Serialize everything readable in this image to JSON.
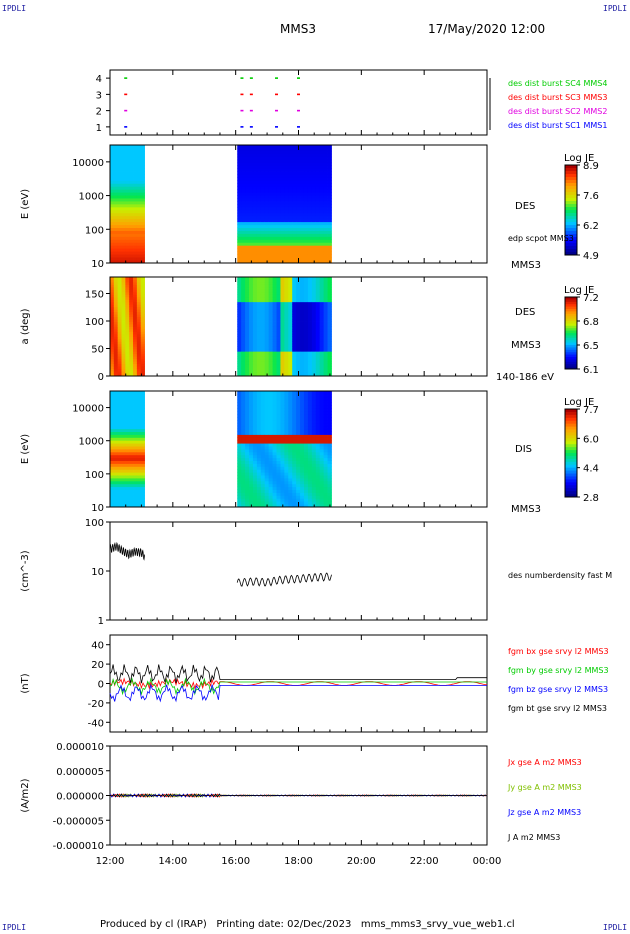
{
  "header": {
    "corner_label": "IPDLI",
    "spacecraft": "MMS3",
    "datetime": "17/May/2020 12:00"
  },
  "footer": {
    "produced_by": "Produced by cl (IRAP)",
    "printing_date": "Printing date: 02/Dec/2023",
    "filename": "mms_mms3_srvy_vue_web1.cl"
  },
  "colors": {
    "c1": "#0000ff",
    "c2": "#e000e0",
    "c3": "#ff0000",
    "c4": "#00cc00",
    "bx": "#ff0000",
    "by": "#00cc00",
    "bz": "#0000ff",
    "bt": "#000000"
  },
  "chart_data": [
    {
      "id": "burst",
      "type": "scatter",
      "ylim": [
        0.5,
        4.5
      ],
      "yticks": [
        "1",
        "2",
        "3",
        "4"
      ],
      "series": [
        {
          "name": "des dist burst SC1 MMS1",
          "level": 1,
          "color": "#0000ff",
          "x_hours": [
            0.5,
            4.2,
            4.5,
            5.3,
            6.0
          ]
        },
        {
          "name": "des dist burst SC2 MMS2",
          "level": 2,
          "color": "#e000e0",
          "x_hours": [
            0.5,
            4.2,
            4.5,
            5.3,
            6.0
          ]
        },
        {
          "name": "des dist burst SC3 MMS3",
          "level": 3,
          "color": "#ff0000",
          "x_hours": [
            0.5,
            4.2,
            4.5,
            5.3,
            6.0
          ]
        },
        {
          "name": "des dist burst SC4 MMS4",
          "level": 4,
          "color": "#00cc00",
          "x_hours": [
            0.5,
            4.2,
            4.5,
            5.3,
            6.0
          ]
        }
      ]
    },
    {
      "id": "des_energy",
      "type": "heatmap",
      "ylabel": "E (eV)",
      "yticks": [
        "10",
        "100",
        "1000",
        "10000"
      ],
      "ylim_log": [
        1,
        4.5
      ],
      "right_label": "DES",
      "right_sub": "MMS3",
      "overlay_label": "edp scpot MMS3",
      "colorbar": {
        "title": "Log JE",
        "ticks": [
          "8.9",
          "7.6",
          "6.2",
          "4.9"
        ],
        "range": [
          4.9,
          8.9
        ]
      },
      "intervals_hours": [
        [
          0.0,
          1.1
        ],
        [
          4.05,
          7.05
        ]
      ]
    },
    {
      "id": "des_pitch",
      "type": "heatmap",
      "ylabel": "a (deg)",
      "yticks": [
        "0",
        "50",
        "100",
        "150"
      ],
      "ylim": [
        0,
        180
      ],
      "right_label": "DES",
      "right_sub": "MMS3",
      "energy_range": "140-186 eV",
      "colorbar": {
        "title": "Log JE",
        "ticks": [
          "7.2",
          "6.8",
          "6.5",
          "6.1"
        ],
        "range": [
          6.1,
          7.2
        ]
      },
      "intervals_hours": [
        [
          0.0,
          1.1
        ],
        [
          4.05,
          7.05
        ]
      ]
    },
    {
      "id": "dis_energy",
      "type": "heatmap",
      "ylabel": "E (eV)",
      "yticks": [
        "10",
        "100",
        "1000",
        "10000"
      ],
      "ylim_log": [
        1,
        4.5
      ],
      "right_label": "DIS",
      "right_sub": "MMS3",
      "colorbar": {
        "title": "Log JE",
        "ticks": [
          "7.7",
          "6.0",
          "4.4",
          "2.8"
        ],
        "range": [
          2.8,
          7.7
        ]
      },
      "intervals_hours": [
        [
          0.0,
          1.1
        ],
        [
          4.05,
          7.05
        ]
      ]
    },
    {
      "id": "density",
      "type": "line",
      "ylabel": "(cm^-3)",
      "yticks": [
        "1",
        "10",
        "100"
      ],
      "ylim_log": [
        0,
        2
      ],
      "series": [
        {
          "name": "des numberdensity fast M",
          "color": "#000000",
          "segments": [
            {
              "x": [
                0.0,
                0.2,
                0.4,
                0.6,
                0.8,
                1.0,
                1.1
              ],
              "y": [
                28,
                32,
                26,
                22,
                25,
                24,
                20
              ]
            },
            {
              "x": [
                4.05,
                4.3,
                4.6,
                5.0,
                5.3,
                5.6,
                6.0,
                6.5,
                7.05
              ],
              "y": [
                5.8,
                6.0,
                6.2,
                5.9,
                6.5,
                6.8,
                7.0,
                7.5,
                7.8
              ]
            }
          ]
        }
      ]
    },
    {
      "id": "fgm",
      "type": "line",
      "ylabel": "(nT)",
      "yticks": [
        "-40",
        "-20",
        "0",
        "20",
        "40"
      ],
      "ylim": [
        -50,
        50
      ],
      "series": [
        {
          "name": "fgm bx gse srvy l2 MMS3",
          "color": "#ff0000"
        },
        {
          "name": "fgm by gse srvy l2 MMS3",
          "color": "#00cc00"
        },
        {
          "name": "fgm bz gse srvy l2 MMS3",
          "color": "#0000ff"
        },
        {
          "name": "fgm bt gse srvy l2 MMS3",
          "color": "#000000"
        }
      ]
    },
    {
      "id": "current",
      "type": "line",
      "ylabel": "(A/m2)",
      "yticks": [
        "-0.000010",
        "-0.000005",
        "0.000000",
        "0.000005",
        "0.000010"
      ],
      "ylim": [
        -1e-05,
        1e-05
      ],
      "series": [
        {
          "name": "Jx gse A m2 MMS3",
          "color": "#ff0000"
        },
        {
          "name": "Jy gse A m2 MMS3",
          "color": "#80c000"
        },
        {
          "name": "Jz gse A m2 MMS3",
          "color": "#0000ff"
        },
        {
          "name": "J A m2 MMS3",
          "color": "#000000"
        }
      ]
    }
  ],
  "time_axis": {
    "ticks": [
      "12:00",
      "14:00",
      "16:00",
      "18:00",
      "20:00",
      "22:00",
      "00:00"
    ],
    "range_hours": [
      0,
      12
    ]
  }
}
